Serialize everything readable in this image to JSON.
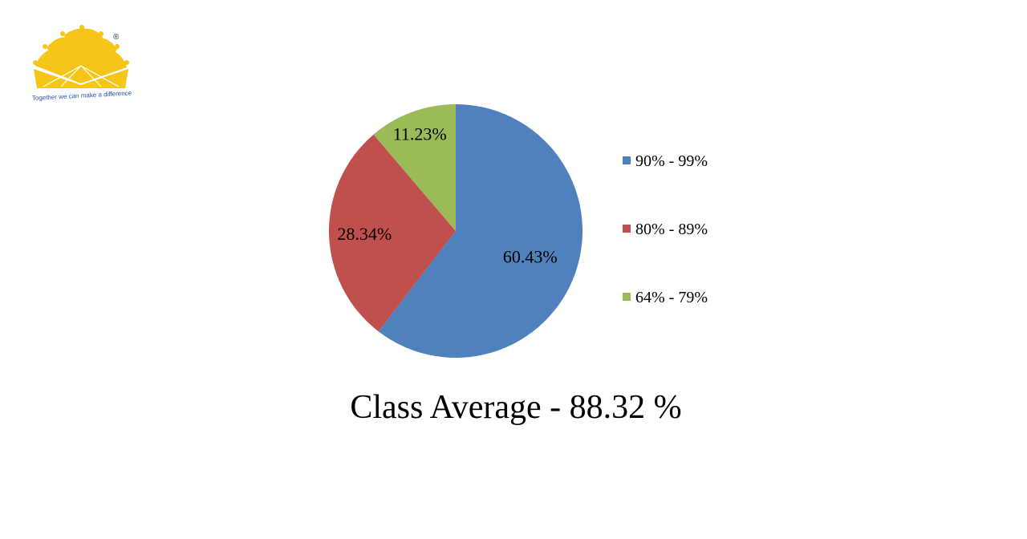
{
  "logo": {
    "tagline": "Together we can make a difference",
    "registered_mark": "®",
    "color": "#F5C518"
  },
  "caption": "Class Average - 88.32 %",
  "chart_data": {
    "type": "pie",
    "series": [
      {
        "name": "",
        "values": [
          60.43,
          28.34,
          11.23
        ]
      }
    ],
    "categories": [
      "90% - 99%",
      "80% - 89%",
      "64% - 79%"
    ],
    "data_labels": [
      "60.43%",
      "28.34%",
      "11.23%"
    ],
    "colors": [
      "#4F81BD",
      "#C0504D",
      "#9BBB59"
    ],
    "legend_placement": "right"
  }
}
